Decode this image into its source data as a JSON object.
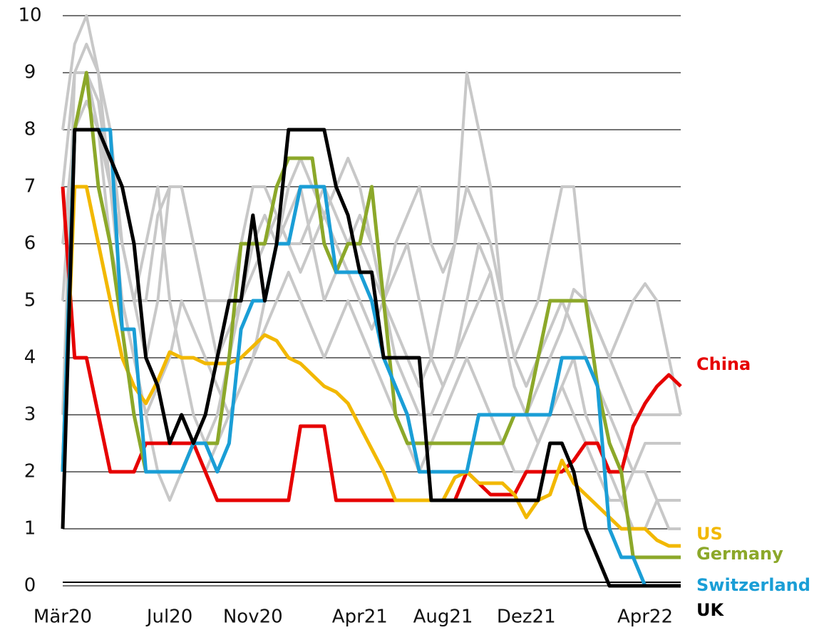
{
  "chart_data": {
    "type": "line",
    "categories": [
      "Mär20",
      null,
      null,
      null,
      null,
      null,
      null,
      null,
      null,
      "Jul20",
      null,
      null,
      null,
      null,
      null,
      null,
      "Nov20",
      null,
      null,
      null,
      null,
      null,
      null,
      null,
      null,
      "Apr21",
      null,
      null,
      null,
      null,
      null,
      null,
      "Aug21",
      null,
      null,
      null,
      null,
      null,
      null,
      "Dez21",
      null,
      null,
      null,
      null,
      null,
      null,
      null,
      null,
      null,
      "Apr22",
      null,
      null,
      null
    ],
    "ylim": [
      0,
      10
    ],
    "yticks": [
      0,
      1,
      2,
      3,
      4,
      5,
      6,
      7,
      8,
      9,
      10
    ],
    "grid": true,
    "series": [
      {
        "color": "#c8c8c8",
        "values": [
          8,
          9.5,
          10,
          9,
          8,
          6,
          5,
          6,
          7,
          5,
          4,
          3,
          2.5,
          3,
          4,
          5,
          6,
          6.5,
          6,
          7,
          7.5,
          7,
          6.5,
          7,
          7.5,
          7,
          6,
          5,
          6,
          6.5,
          7,
          6,
          5.5,
          6,
          9,
          8,
          7,
          5,
          4,
          4.5,
          5,
          6,
          7,
          7,
          5,
          4.5,
          4,
          4.5,
          5,
          5.3,
          5,
          4,
          3
        ]
      },
      {
        "color": "#c8c8c8",
        "values": [
          3,
          9,
          9.5,
          9,
          7,
          5,
          4,
          3,
          2,
          1.5,
          2,
          2.5,
          2,
          2.5,
          3,
          3.5,
          4,
          5,
          6,
          6.5,
          7,
          6,
          5,
          5.5,
          6,
          6.5,
          6,
          5,
          4.5,
          4,
          3.5,
          4,
          5,
          6,
          7,
          6.5,
          6,
          5,
          4,
          3.5,
          4,
          4.5,
          5,
          4.5,
          4,
          3.5,
          3,
          2.5,
          2,
          2,
          1.5,
          1,
          1
        ]
      },
      {
        "color": "#c8c8c8",
        "values": [
          6,
          8,
          9,
          8.5,
          7,
          6,
          5,
          5,
          6.5,
          7,
          7,
          6,
          5,
          4,
          4.5,
          5,
          5.5,
          6,
          6.5,
          6,
          5.5,
          6,
          6.5,
          6,
          5.5,
          5,
          4.5,
          5,
          5.5,
          6,
          5,
          4,
          3.5,
          4,
          4.5,
          5,
          5.5,
          4.5,
          3.5,
          3,
          3.5,
          4,
          4.5,
          5.2,
          5,
          4.5,
          4,
          3.5,
          3,
          3,
          3,
          3,
          3
        ]
      },
      {
        "color": "#c8c8c8",
        "values": [
          5,
          8,
          8.5,
          8,
          6,
          5,
          4,
          3,
          3.5,
          4,
          5,
          4.5,
          4,
          3.5,
          3,
          3.5,
          4,
          4.5,
          5,
          5.5,
          5,
          4.5,
          4,
          4.5,
          5,
          4.5,
          4,
          3.5,
          3,
          2.5,
          2,
          2.5,
          3,
          3.5,
          4,
          3.5,
          3,
          2.5,
          2,
          2,
          2.5,
          3,
          3.5,
          3,
          2.5,
          2,
          1.5,
          1.5,
          2,
          2.5,
          2.5,
          2.5,
          2.5
        ]
      },
      {
        "color": "#c8c8c8",
        "values": [
          7,
          9,
          9,
          8,
          7,
          6,
          5,
          4,
          5,
          7,
          7,
          6,
          5,
          5,
          5,
          6,
          7,
          7,
          6.5,
          6,
          6,
          6.5,
          7,
          6.5,
          6,
          6,
          5.5,
          5,
          4,
          3.5,
          3,
          3,
          3.5,
          4,
          5,
          6,
          5.5,
          4.5,
          3.5,
          3,
          2.5,
          3,
          3.5,
          4,
          3,
          2.5,
          2,
          1.5,
          1,
          1,
          1.5,
          1.5,
          1.5
        ]
      },
      {
        "name": "China",
        "color": "#e60000",
        "values": [
          7,
          4,
          4,
          3,
          2,
          2,
          2,
          2.5,
          2.5,
          2.5,
          2.5,
          2.5,
          2,
          1.5,
          1.5,
          1.5,
          1.5,
          1.5,
          1.5,
          1.5,
          2.8,
          2.8,
          2.8,
          1.5,
          1.5,
          1.5,
          1.5,
          1.5,
          1.5,
          1.5,
          1.5,
          1.5,
          1.5,
          1.5,
          2,
          1.8,
          1.6,
          1.6,
          1.6,
          2,
          2,
          2,
          2,
          2.2,
          2.5,
          2.5,
          2,
          2,
          2.8,
          3.2,
          3.5,
          3.7,
          3.5
        ]
      },
      {
        "name": "US",
        "color": "#f2b800",
        "values": [
          2,
          7,
          7,
          6,
          5,
          4,
          3.5,
          3.2,
          3.6,
          4.1,
          4,
          4,
          3.9,
          3.9,
          3.9,
          4,
          4.2,
          4.4,
          4.3,
          4,
          3.9,
          3.7,
          3.5,
          3.4,
          3.2,
          2.8,
          2.4,
          2,
          1.5,
          1.5,
          1.5,
          1.5,
          1.5,
          1.9,
          2,
          1.8,
          1.8,
          1.8,
          1.6,
          1.2,
          1.5,
          1.6,
          2.2,
          1.8,
          1.6,
          1.4,
          1.2,
          1,
          1,
          1,
          0.8,
          0.7,
          0.7
        ]
      },
      {
        "name": "Germany",
        "color": "#8ca82a",
        "values": [
          2,
          8,
          9,
          7,
          6,
          4.5,
          3,
          2,
          2,
          2,
          2,
          2.5,
          2.5,
          2.5,
          4,
          6,
          6,
          6,
          7,
          7.5,
          7.5,
          7.5,
          6,
          5.5,
          6,
          6,
          7,
          5,
          3,
          2.5,
          2.5,
          2.5,
          2.5,
          2.5,
          2.5,
          2.5,
          2.5,
          2.5,
          3,
          3,
          4,
          5,
          5,
          5,
          5,
          3.5,
          2.5,
          2,
          0.5,
          0.5,
          0.5,
          0.5,
          0.5
        ]
      },
      {
        "name": "Switzerland",
        "color": "#1a9ed6",
        "values": [
          2,
          8,
          8,
          8,
          8,
          4.5,
          4.5,
          2,
          2,
          2,
          2,
          2.5,
          2.5,
          2,
          2.5,
          4.5,
          5,
          5,
          6,
          6,
          7,
          7,
          7,
          5.5,
          5.5,
          5.5,
          5,
          4,
          3.5,
          3,
          2,
          2,
          2,
          2,
          2,
          3,
          3,
          3,
          3,
          3,
          3,
          3,
          4,
          4,
          4,
          3.5,
          1,
          0.5,
          0.5,
          0,
          0,
          0,
          0
        ]
      },
      {
        "name": "UK",
        "color": "#000000",
        "values": [
          1,
          8,
          8,
          8,
          7.5,
          7,
          6,
          4,
          3.5,
          2.5,
          3,
          2.5,
          3,
          4,
          5,
          5,
          6.5,
          5,
          6,
          8,
          8,
          8,
          8,
          7,
          6.5,
          5.5,
          5.5,
          4,
          4,
          4,
          4,
          1.5,
          1.5,
          1.5,
          1.5,
          1.5,
          1.5,
          1.5,
          1.5,
          1.5,
          1.5,
          2.5,
          2.5,
          2,
          1,
          0.5,
          0,
          0,
          0,
          0,
          0,
          0,
          0
        ]
      }
    ]
  }
}
